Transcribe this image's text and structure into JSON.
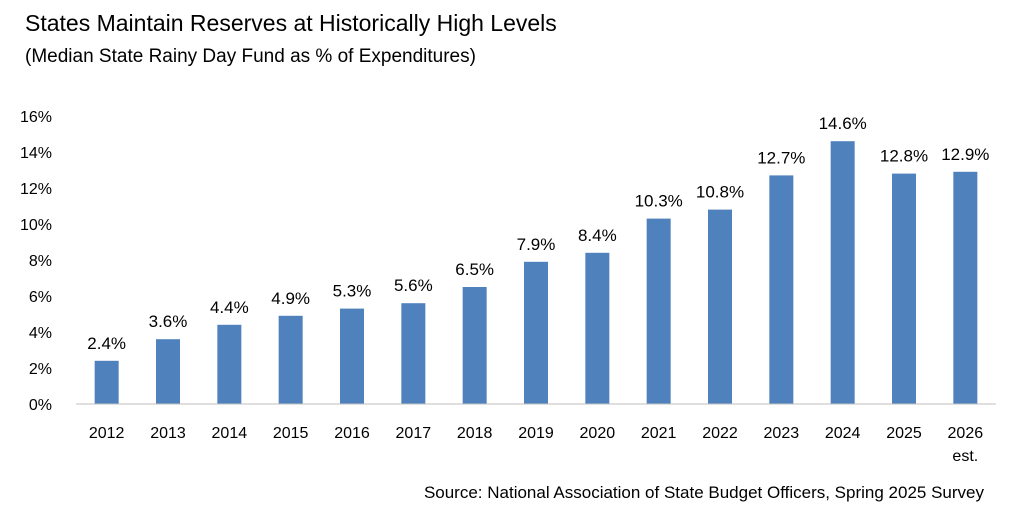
{
  "chart_data": {
    "type": "bar",
    "title": "States Maintain Reserves at Historically High Levels",
    "subtitle": "(Median State Rainy Day Fund as % of Expenditures)",
    "source": "Source: National Association of State Budget Officers, Spring 2025 Survey",
    "categories": [
      [
        "2012"
      ],
      [
        "2013"
      ],
      [
        "2014"
      ],
      [
        "2015"
      ],
      [
        "2016"
      ],
      [
        "2017"
      ],
      [
        "2018"
      ],
      [
        "2019"
      ],
      [
        "2020"
      ],
      [
        "2021"
      ],
      [
        "2022"
      ],
      [
        "2023"
      ],
      [
        "2024"
      ],
      [
        "2025"
      ],
      [
        "2026",
        "est."
      ]
    ],
    "values": [
      2.4,
      3.6,
      4.4,
      4.9,
      5.3,
      5.6,
      6.5,
      7.9,
      8.4,
      10.3,
      10.8,
      12.7,
      14.6,
      12.8,
      12.9
    ],
    "data_labels": [
      "2.4%",
      "3.6%",
      "4.4%",
      "4.9%",
      "5.3%",
      "5.6%",
      "6.5%",
      "7.9%",
      "8.4%",
      "10.3%",
      "10.8%",
      "12.7%",
      "14.6%",
      "12.8%",
      "12.9%"
    ],
    "y_ticks": [
      0,
      2,
      4,
      6,
      8,
      10,
      12,
      14,
      16
    ],
    "y_tick_labels": [
      "0%",
      "2%",
      "4%",
      "6%",
      "8%",
      "10%",
      "12%",
      "14%",
      "16%"
    ],
    "ylim": [
      0,
      16
    ],
    "grid": false,
    "bar_color": "#4f81bd"
  }
}
